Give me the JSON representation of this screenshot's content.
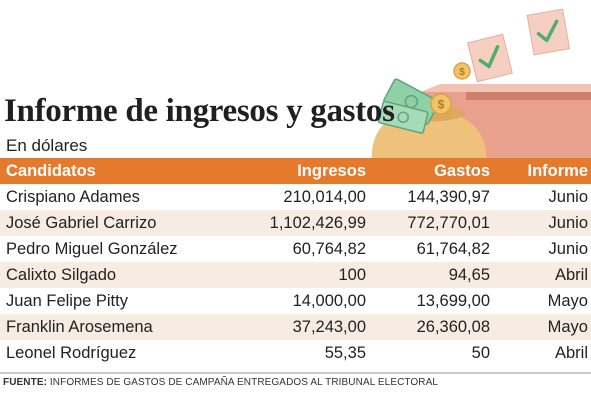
{
  "title": "Informe de ingresos y gastos",
  "subtitle": "En dólares",
  "columns": [
    "Candidatos",
    "Ingresos",
    "Gastos",
    "Informe"
  ],
  "rows": [
    [
      "Crispiano Adames",
      "210,014,00",
      "144,390,97",
      "Junio"
    ],
    [
      "José Gabriel Carrizo",
      "1,102,426,99",
      "772,770,01",
      "Junio"
    ],
    [
      "Pedro Miguel González",
      "60,764,82",
      "61,764,82",
      "Junio"
    ],
    [
      "Calixto Silgado",
      "100",
      "94,65",
      "Abril"
    ],
    [
      "Juan Felipe Pitty",
      "14,000,00",
      "13,699,00",
      "Mayo"
    ],
    [
      "Franklin Arosemena",
      "37,243,00",
      "26,360,08",
      "Mayo"
    ],
    [
      "Leonel Rodríguez",
      "55,35",
      "50",
      "Abril"
    ]
  ],
  "footer": {
    "label": "FUENTE:",
    "text": "INFORMES DE GASTOS DE CAMPAÑA ENTREGADOS AL TRIBUNAL ELECTORAL"
  },
  "colors": {
    "header_bg": "#e57a2c",
    "alt_row_bg": "#f6ece1",
    "ballot_box": "#e9a08d",
    "bag": "#eec27a",
    "money_green": "#8fd0a8"
  },
  "icons": [
    "ballot-box-icon",
    "money-bag-icon",
    "banknote-icon",
    "coin-icon",
    "checkmark-ballot-icon"
  ],
  "chart_data": {
    "type": "table",
    "title": "Informe de ingresos y gastos",
    "subtitle": "En dólares",
    "columns": [
      "Candidatos",
      "Ingresos",
      "Gastos",
      "Informe"
    ],
    "rows": [
      [
        "Crispiano Adames",
        "210,014,00",
        "144,390,97",
        "Junio"
      ],
      [
        "José Gabriel Carrizo",
        "1,102,426,99",
        "772,770,01",
        "Junio"
      ],
      [
        "Pedro Miguel González",
        "60,764,82",
        "61,764,82",
        "Junio"
      ],
      [
        "Calixto Silgado",
        "100",
        "94,65",
        "Abril"
      ],
      [
        "Juan Felipe Pitty",
        "14,000,00",
        "13,699,00",
        "Mayo"
      ],
      [
        "Franklin Arosemena",
        "37,243,00",
        "26,360,08",
        "Mayo"
      ],
      [
        "Leonel Rodríguez",
        "55,35",
        "50",
        "Abril"
      ]
    ]
  }
}
